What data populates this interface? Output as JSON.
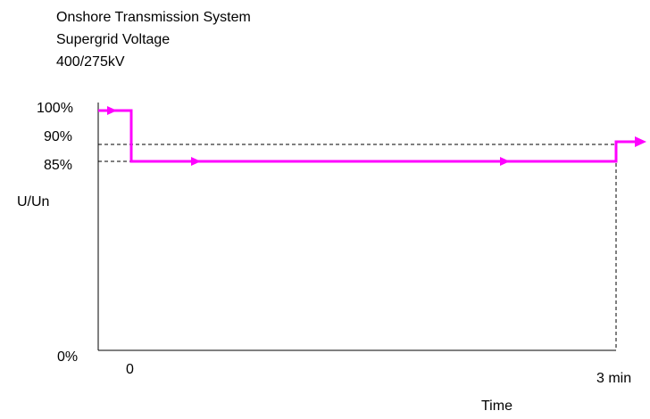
{
  "chart_data": {
    "type": "line",
    "title_lines": [
      "Onshore Transmission System",
      "Supergrid Voltage",
      "400/275kV"
    ],
    "xlabel": "Time",
    "ylabel": "U/Un",
    "y_ticks": [
      {
        "value": 100,
        "label": "100%"
      },
      {
        "value": 90,
        "label": "90%"
      },
      {
        "value": 85,
        "label": "85%"
      },
      {
        "value": 0,
        "label": "0%"
      }
    ],
    "x_ticks": [
      {
        "value": 0,
        "label": "0"
      },
      {
        "value": 3,
        "label": "3 min"
      }
    ],
    "xlim": [
      -0.18,
      3
    ],
    "ylim": [
      0,
      100
    ],
    "series": [
      {
        "color": "#ff00ff",
        "points": [
          [
            -0.18,
            98
          ],
          [
            0,
            98
          ],
          [
            0,
            84
          ],
          [
            3,
            84
          ],
          [
            3,
            88
          ],
          [
            3.2,
            88
          ]
        ]
      }
    ],
    "reference_lines": [
      {
        "y": 88,
        "x_from": 0,
        "x_to": 3,
        "style": "dashed"
      },
      {
        "y": 84,
        "x_from": -0.18,
        "x_to": 0,
        "style": "dashed"
      },
      {
        "x": 3,
        "y_from": 0,
        "y_to": 88,
        "style": "dashed"
      }
    ],
    "arrows": [
      {
        "x": -0.08,
        "y": 98
      },
      {
        "x": 0.42,
        "y": 84
      },
      {
        "x": 2.38,
        "y": 84
      },
      {
        "x": 3.2,
        "y": 88
      }
    ]
  }
}
